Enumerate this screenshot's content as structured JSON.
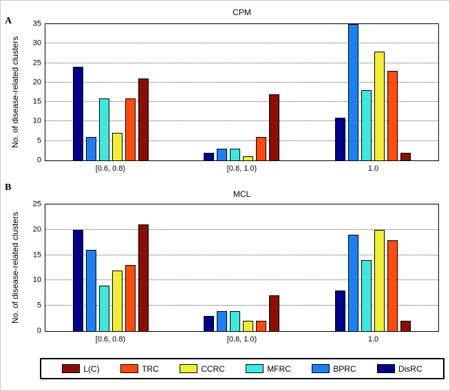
{
  "chart_data": [
    {
      "type": "bar",
      "panel_label": "A",
      "title": "CPM",
      "ylabel": "No. of disease-related clusters",
      "xlabel": "",
      "categories": [
        "[0.6, 0.8)",
        "[0.8, 1.0)",
        "1.0"
      ],
      "ylim": [
        0,
        35
      ],
      "yticks": [
        0,
        5,
        10,
        15,
        20,
        25,
        30,
        35
      ],
      "grid": "horizontal-dotted",
      "legend_position": "shared-bottom",
      "series": [
        {
          "name": "DisRC",
          "color": "#00008B",
          "values": [
            24,
            2,
            11
          ]
        },
        {
          "name": "BPRC",
          "color": "#1E7FF2",
          "values": [
            6,
            3,
            35
          ]
        },
        {
          "name": "MFRC",
          "color": "#3FE8DC",
          "values": [
            16,
            3,
            18
          ]
        },
        {
          "name": "CCRC",
          "color": "#F0F032",
          "values": [
            7,
            1,
            28
          ]
        },
        {
          "name": "TRC",
          "color": "#FF4B0D",
          "values": [
            16,
            6,
            23
          ]
        },
        {
          "name": "L(C)",
          "color": "#8B0E04",
          "values": [
            21,
            17,
            2
          ]
        }
      ]
    },
    {
      "type": "bar",
      "panel_label": "B",
      "title": "MCL",
      "ylabel": "No. of disease-related clusters",
      "xlabel": "",
      "categories": [
        "[0.6, 0.8)",
        "[0.8, 1.0)",
        "1.0"
      ],
      "ylim": [
        0,
        25
      ],
      "yticks": [
        0,
        5,
        10,
        15,
        20,
        25
      ],
      "grid": "horizontal-dotted",
      "legend_position": "shared-bottom",
      "series": [
        {
          "name": "DisRC",
          "color": "#00008B",
          "values": [
            20,
            3,
            8
          ]
        },
        {
          "name": "BPRC",
          "color": "#1E7FF2",
          "values": [
            16,
            4,
            19
          ]
        },
        {
          "name": "MFRC",
          "color": "#3FE8DC",
          "values": [
            9,
            4,
            14
          ]
        },
        {
          "name": "CCRC",
          "color": "#F0F032",
          "values": [
            12,
            2,
            20
          ]
        },
        {
          "name": "TRC",
          "color": "#FF4B0D",
          "values": [
            13,
            2,
            18
          ]
        },
        {
          "name": "L(C)",
          "color": "#8B0E04",
          "values": [
            21,
            7,
            2
          ]
        }
      ]
    }
  ],
  "legend": {
    "items": [
      {
        "label": "L(C)",
        "color": "#8B0E04"
      },
      {
        "label": "TRC",
        "color": "#FF4B0D"
      },
      {
        "label": "CCRC",
        "color": "#F0F032"
      },
      {
        "label": "MFRC",
        "color": "#3FE8DC"
      },
      {
        "label": "BPRC",
        "color": "#1E7FF2"
      },
      {
        "label": "DisRC",
        "color": "#00008B"
      }
    ]
  }
}
